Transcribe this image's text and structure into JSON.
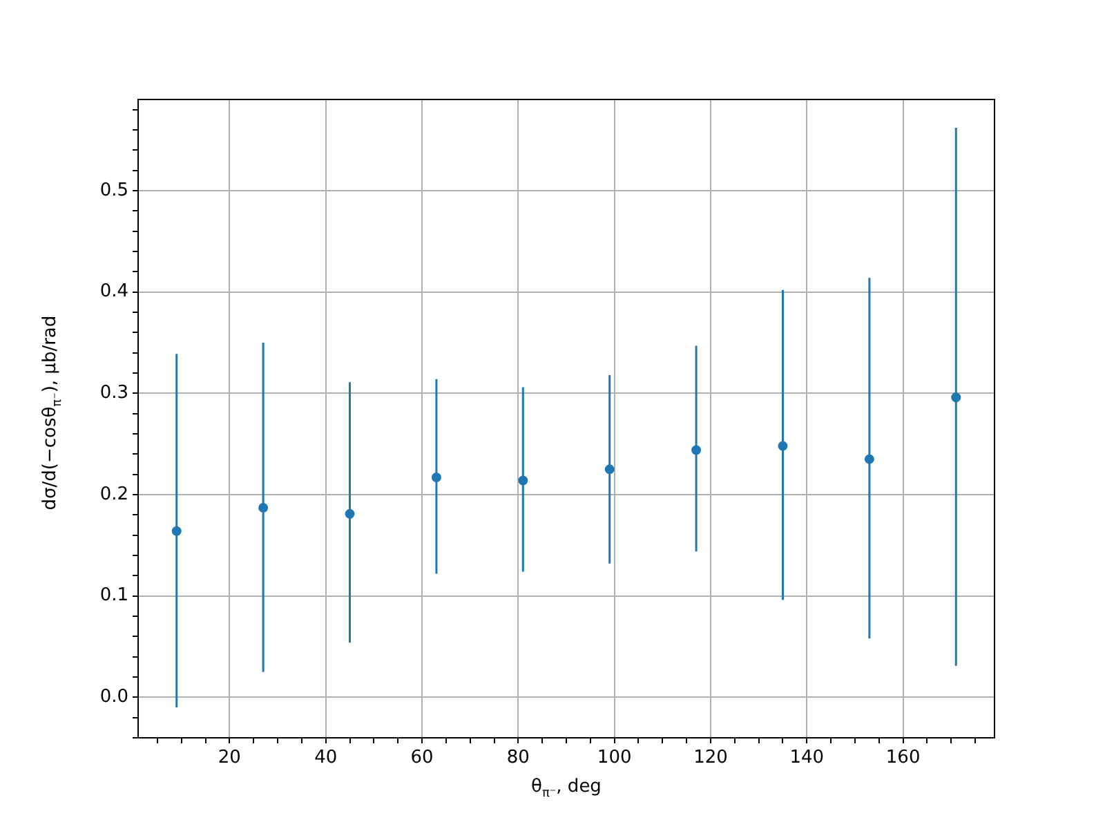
{
  "chart_data": {
    "type": "scatter",
    "xlabel": "θ$_{π⁻}$, deg",
    "ylabel": "dσ/d(−cosθ$_{π⁻}$), μb/rad",
    "x": [
      9,
      27,
      45,
      63,
      81,
      99,
      117,
      135,
      153,
      171
    ],
    "series": [
      {
        "color": "#1f77b4",
        "values": [
          0.164,
          0.187,
          0.181,
          0.217,
          0.214,
          0.225,
          0.244,
          0.248,
          0.235,
          0.296
        ],
        "errors": [
          [
            -0.01,
            0.339
          ],
          [
            0.025,
            0.35
          ],
          [
            0.054,
            0.311
          ],
          [
            0.122,
            0.314
          ],
          [
            0.124,
            0.306
          ],
          [
            0.132,
            0.318
          ],
          [
            0.144,
            0.347
          ],
          [
            0.096,
            0.402
          ],
          [
            0.058,
            0.414
          ],
          [
            0.031,
            0.562
          ]
        ]
      }
    ],
    "xlim": [
      1,
      179
    ],
    "ylim": [
      -0.04,
      0.59
    ],
    "xticks": [
      {
        "value": 5,
        "label": null
      },
      {
        "value": 10,
        "label": null
      },
      {
        "value": 15,
        "label": null
      },
      20,
      {
        "value": 25,
        "label": null
      },
      {
        "value": 30,
        "label": null
      },
      {
        "value": 35,
        "label": null
      },
      40,
      {
        "value": 45,
        "label": null
      },
      {
        "value": 50,
        "label": null
      },
      {
        "value": 55,
        "label": null
      },
      60,
      {
        "value": 65,
        "label": null
      },
      {
        "value": 70,
        "label": null
      },
      {
        "value": 75,
        "label": null
      },
      80,
      {
        "value": 85,
        "label": null
      },
      {
        "value": 90,
        "label": null
      },
      {
        "value": 95,
        "label": null
      },
      100,
      {
        "value": 105,
        "label": null
      },
      {
        "value": 110,
        "label": null
      },
      {
        "value": 115,
        "label": null
      },
      120,
      {
        "value": 125,
        "label": null
      },
      {
        "value": 130,
        "label": null
      },
      {
        "value": 135,
        "label": null
      },
      140,
      {
        "value": 145,
        "label": null
      },
      {
        "value": 150,
        "label": null
      },
      {
        "value": 155,
        "label": null
      },
      160,
      {
        "value": 165,
        "label": null
      },
      {
        "value": 170,
        "label": null
      },
      {
        "value": 175,
        "label": null
      }
    ],
    "yticks": [
      {
        "value": -0.04,
        "label": null
      },
      {
        "value": -0.02,
        "label": null
      },
      {
        "value": 0,
        "label": "0.0"
      },
      {
        "value": 0.02,
        "label": null
      },
      {
        "value": 0.04,
        "label": null
      },
      {
        "value": 0.06,
        "label": null
      },
      {
        "value": 0.08,
        "label": null
      },
      {
        "value": 0.1,
        "label": "0.1"
      },
      {
        "value": 0.12,
        "label": null
      },
      {
        "value": 0.14,
        "label": null
      },
      {
        "value": 0.16,
        "label": null
      },
      {
        "value": 0.18,
        "label": null
      },
      {
        "value": 0.2,
        "label": "0.2"
      },
      {
        "value": 0.22,
        "label": null
      },
      {
        "value": 0.24,
        "label": null
      },
      {
        "value": 0.26,
        "label": null
      },
      {
        "value": 0.28,
        "label": null
      },
      {
        "value": 0.3,
        "label": "0.3"
      },
      {
        "value": 0.32,
        "label": null
      },
      {
        "value": 0.34,
        "label": null
      },
      {
        "value": 0.36,
        "label": null
      },
      {
        "value": 0.38,
        "label": null
      },
      {
        "value": 0.4,
        "label": "0.4"
      },
      {
        "value": 0.42,
        "label": null
      },
      {
        "value": 0.44,
        "label": null
      },
      {
        "value": 0.46,
        "label": null
      },
      {
        "value": 0.48,
        "label": null
      },
      {
        "value": 0.5,
        "label": "0.5"
      },
      {
        "value": 0.52,
        "label": null
      },
      {
        "value": 0.54,
        "label": null
      },
      {
        "value": 0.56,
        "label": null
      },
      {
        "value": 0.58,
        "label": null
      }
    ],
    "grid": true,
    "marker": "circle",
    "legend": false
  }
}
